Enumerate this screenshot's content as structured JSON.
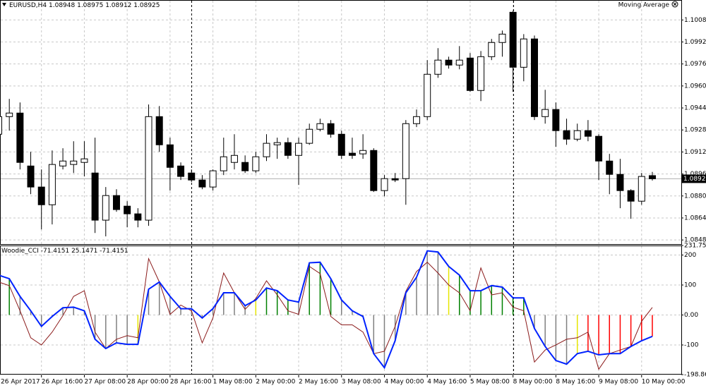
{
  "chart_data": [
    {
      "type": "candlestick",
      "title": "EURUSD,H4",
      "annotation": "Moving Average",
      "categories": [
        "26 Apr 2017",
        null,
        null,
        null,
        "26 Apr 16:00",
        null,
        null,
        null,
        "27 Apr 08:00",
        null,
        null,
        null,
        "28 Apr 00:00",
        null,
        null,
        null,
        "28 Apr 16:00",
        null,
        null,
        null,
        "1 May 08:00",
        null,
        null,
        null,
        "2 May 00:00",
        null,
        null,
        null,
        "2 May 16:00",
        null,
        null,
        null,
        "3 May 08:00",
        null,
        null,
        null,
        "4 May 00:00",
        null,
        null,
        null,
        "4 May 16:00",
        null,
        null,
        null,
        "5 May 08:00",
        null,
        null,
        null,
        "8 May 00:00",
        null,
        null,
        null,
        "8 May 16:00",
        null,
        null,
        null,
        "9 May 08:00",
        null,
        null,
        null,
        "10 May 00:00",
        null
      ],
      "open": [
        1.09249,
        1.09377,
        1.09403,
        1.09018,
        1.08865,
        1.08736,
        1.09018,
        1.09029,
        1.09044,
        1.08967,
        1.08624,
        1.08803,
        1.08726,
        1.0867,
        1.08624,
        1.09377,
        1.09172,
        1.09018,
        1.08967,
        1.08916,
        1.08865,
        1.08983,
        1.09044,
        1.09044,
        1.08983,
        1.09085,
        1.09172,
        1.09188,
        1.09095,
        1.09183,
        1.09285,
        1.09326,
        1.09249,
        1.09111,
        1.09106,
        1.09131,
        1.08839,
        1.08926,
        1.08926,
        1.09326,
        1.09377,
        1.09685,
        1.09788,
        1.09752,
        1.09803,
        1.09567,
        1.09813,
        1.09916,
        1.10136,
        1.09736,
        1.09942,
        1.09377,
        1.09429,
        1.09275,
        1.09213,
        1.09275,
        1.09234,
        1.09054,
        1.08957,
        1.08839,
        1.08762,
        1.08948
      ],
      "high": [
        1.09454,
        1.09506,
        1.0948,
        1.09121,
        1.08993,
        1.09131,
        1.09147,
        1.09198,
        1.09198,
        1.09224,
        1.08865,
        1.08849,
        1.08762,
        1.08711,
        1.09465,
        1.09454,
        1.09224,
        1.09044,
        1.08993,
        1.08952,
        1.08993,
        1.09224,
        1.09249,
        1.09095,
        1.09121,
        1.09249,
        1.09224,
        1.09224,
        1.09224,
        1.09326,
        1.09362,
        1.09352,
        1.09275,
        1.09224,
        1.09249,
        1.09147,
        1.08952,
        1.08967,
        1.09352,
        1.09429,
        1.09788,
        1.09875,
        1.09813,
        1.0989,
        1.09839,
        1.09854,
        1.09942,
        1.10003,
        1.10147,
        1.09977,
        1.09967,
        1.09572,
        1.0948,
        1.09362,
        1.09326,
        1.09352,
        1.09249,
        1.09106,
        1.0907,
        1.08849,
        1.08967,
        1.08975
      ],
      "low": [
        1.09224,
        1.09275,
        1.08993,
        1.08813,
        1.08557,
        1.08593,
        1.08993,
        1.08967,
        1.08942,
        1.08531,
        1.08506,
        1.08685,
        1.08572,
        1.08572,
        1.08583,
        1.09121,
        1.08839,
        1.08916,
        1.08901,
        1.08849,
        1.08839,
        1.08952,
        1.08993,
        1.08967,
        1.08967,
        1.09054,
        1.0907,
        1.0907,
        1.0888,
        1.09172,
        1.0927,
        1.09224,
        1.0907,
        1.0907,
        1.0907,
        1.08829,
        1.08798,
        1.08901,
        1.08736,
        1.09301,
        1.09352,
        1.09659,
        1.09726,
        1.09721,
        1.09557,
        1.0949,
        1.09788,
        1.09813,
        1.09557,
        1.09634,
        1.09352,
        1.09326,
        1.09157,
        1.09172,
        1.09198,
        1.09198,
        1.08916,
        1.08813,
        1.08711,
        1.08634,
        1.08736,
        1.08912
      ],
      "close": [
        1.09377,
        1.09403,
        1.09044,
        1.08865,
        1.08736,
        1.09029,
        1.09054,
        1.09054,
        1.0907,
        1.08624,
        1.08803,
        1.08701,
        1.0867,
        1.08624,
        1.09377,
        1.09172,
        1.09008,
        1.08942,
        1.08916,
        1.08865,
        1.08983,
        1.09085,
        1.09095,
        1.08983,
        1.09085,
        1.09183,
        1.09188,
        1.09095,
        1.09183,
        1.09285,
        1.09326,
        1.09249,
        1.09095,
        1.09095,
        1.09131,
        1.08839,
        1.08926,
        1.08916,
        1.09326,
        1.09377,
        1.09685,
        1.09788,
        1.09752,
        1.09788,
        1.09567,
        1.09813,
        1.09916,
        1.09977,
        1.09736,
        1.09942,
        1.09377,
        1.09429,
        1.09275,
        1.09213,
        1.09275,
        1.09234,
        1.09054,
        1.08957,
        1.08839,
        1.08762,
        1.08942,
        1.08925
      ],
      "up_color": "#ffffff",
      "down_color": "#000000",
      "outline_color": "#000000",
      "ylim": [
        1.0845,
        1.1022
      ],
      "yticks": [
        {
          "value": 1.1008,
          "label": "1.10080"
        },
        {
          "value": 1.0992,
          "label": "1.09920"
        },
        {
          "value": 1.0976,
          "label": "1.09760"
        },
        {
          "value": 1.096,
          "label": "1.09600"
        },
        {
          "value": 1.0944,
          "label": "1.09440"
        },
        {
          "value": 1.0928,
          "label": "1.09280"
        },
        {
          "value": 1.0912,
          "label": "1.09120"
        },
        {
          "value": 1.0896,
          "label": "1.08960"
        },
        {
          "value": 1.088,
          "label": "1.08800"
        },
        {
          "value": 1.0864,
          "label": "1.08640"
        },
        {
          "value": 1.0848,
          "label": "1.08480"
        }
      ],
      "grid": true
    },
    {
      "type": "cci",
      "title": "Woodie_CCI",
      "series": [
        {
          "color": "#0022ff",
          "values": [
            133,
            121,
            62,
            14,
            -38,
            -5,
            24,
            26,
            14,
            -81,
            -112,
            -93,
            -98,
            -98,
            86,
            110,
            62,
            21,
            21,
            -10,
            21,
            74,
            74,
            31,
            50,
            90,
            81,
            50,
            43,
            174,
            176,
            121,
            50,
            14,
            -5,
            -129,
            -176,
            -86,
            74,
            126,
            214,
            210,
            162,
            133,
            81,
            81,
            98,
            93,
            57,
            57,
            -45,
            -105,
            -152,
            -164,
            -129,
            -121,
            -133,
            -129,
            -129,
            -105,
            -86,
            -71.4151
          ]
        },
        {
          "color": "#8b1a1a",
          "values": [
            110,
            98,
            14,
            -76,
            -100,
            -57,
            -2,
            62,
            81,
            -57,
            -112,
            -81,
            -69,
            -76,
            188,
            110,
            2,
            33,
            14,
            -93,
            -10,
            140,
            74,
            19,
            55,
            114,
            67,
            14,
            2,
            162,
            138,
            -5,
            -33,
            -33,
            -57,
            -129,
            -121,
            -38,
            79,
            145,
            176,
            140,
            100,
            74,
            14,
            157,
            67,
            74,
            26,
            14,
            -157,
            -117,
            -100,
            -81,
            -76,
            -57,
            -181,
            -129,
            -117,
            -105,
            -21,
            25.1471
          ]
        },
        {
          "values": [
            133,
            121,
            62,
            14,
            -38,
            -5,
            24,
            26,
            14,
            -81,
            -112,
            -93,
            -98,
            -98,
            86,
            110,
            62,
            21,
            21,
            -10,
            21,
            74,
            74,
            31,
            50,
            90,
            81,
            50,
            43,
            174,
            176,
            121,
            50,
            14,
            -5,
            -129,
            -176,
            -86,
            74,
            126,
            214,
            210,
            162,
            133,
            81,
            81,
            98,
            93,
            57,
            57,
            -45,
            -105,
            -152,
            -164,
            -129,
            -121,
            -133,
            -129,
            -129,
            -105,
            -86,
            -71.4151
          ],
          "colors": [
            "#008000",
            "#008000",
            "#808080",
            "#808080",
            "#808080",
            "#808080",
            "#808080",
            "#808080",
            "#808080",
            "#808080",
            "#808080",
            "#808080",
            "#808080",
            "#e6e600",
            "#808080",
            "#808080",
            "#808080",
            "#808080",
            "#808080",
            "#808080",
            "#808080",
            "#808080",
            "#808080",
            "#808080",
            "#e6e600",
            "#008000",
            "#008000",
            "#008000",
            "#808080",
            "#008000",
            "#008000",
            "#008000",
            "#808080",
            "#808080",
            "#808080",
            "#808080",
            "#808080",
            "#808080",
            "#808080",
            "#808080",
            "#808080",
            "#808080",
            "#e6e600",
            "#008000",
            "#008000",
            "#008000",
            "#008000",
            "#008000",
            "#008000",
            "#008000",
            "#808080",
            "#808080",
            "#808080",
            "#808080",
            "#e6e600",
            "#ff0000",
            "#ff0000",
            "#ff0000",
            "#ff0000",
            "#ff0000",
            "#ff0000",
            "#ff0000"
          ]
        }
      ],
      "ylim": [
        -198.86,
        231.755
      ],
      "yticks": [
        231.755,
        200,
        100,
        {
          "value": 0,
          "label": "0.00"
        },
        -100,
        -198.86
      ],
      "grid": true
    }
  ]
}
